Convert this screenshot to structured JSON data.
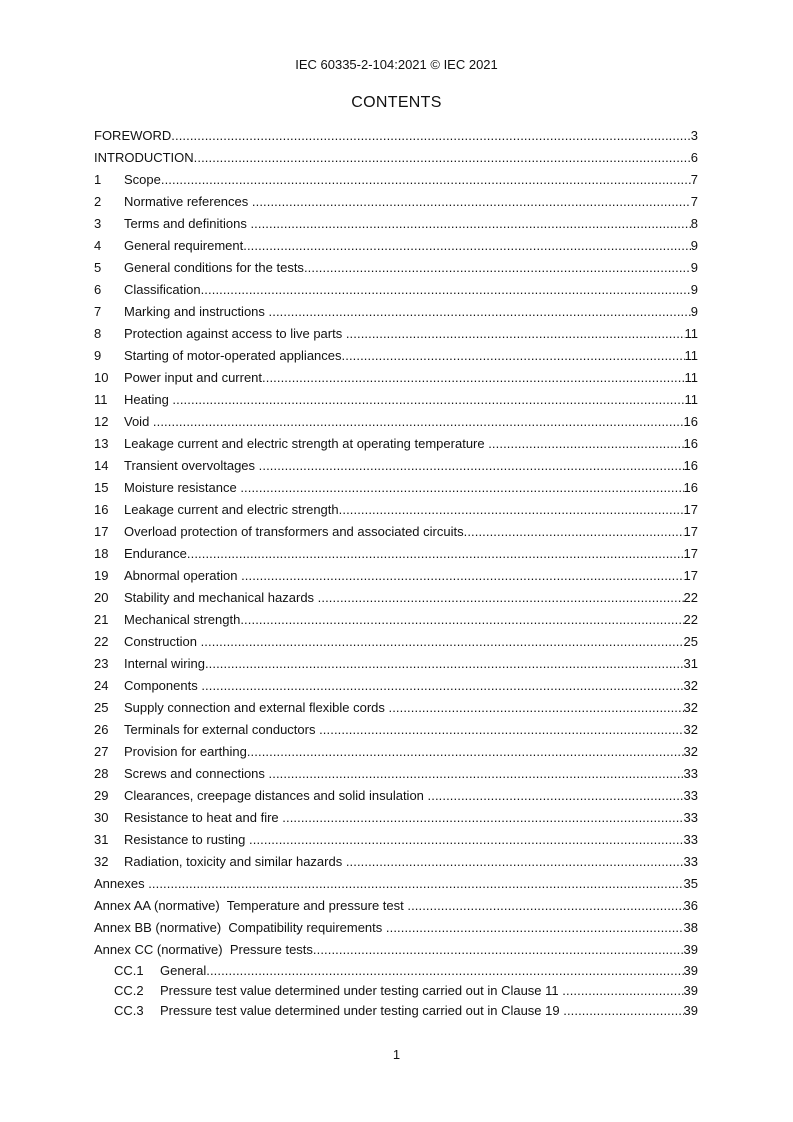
{
  "header": "IEC 60335-2-104:2021 © IEC 2021",
  "title": "CONTENTS",
  "entries": [
    {
      "num": "",
      "text": "FOREWORD",
      "page": "3"
    },
    {
      "num": "",
      "text": "INTRODUCTION",
      "page": "6"
    },
    {
      "num": "1",
      "text": "Scope",
      "page": "7"
    },
    {
      "num": "2",
      "text": "Normative references ",
      "page": "7"
    },
    {
      "num": "3",
      "text": "Terms and definitions ",
      "page": "8"
    },
    {
      "num": "4",
      "text": "General requirement",
      "page": "9"
    },
    {
      "num": "5",
      "text": "General conditions for the tests",
      "page": "9"
    },
    {
      "num": "6",
      "text": "Classification",
      "page": "9"
    },
    {
      "num": "7",
      "text": "Marking and instructions ",
      "page": "9"
    },
    {
      "num": "8",
      "text": "Protection against access to live parts ",
      "page": "11"
    },
    {
      "num": "9",
      "text": "Starting of motor-operated appliances",
      "page": "11"
    },
    {
      "num": "10",
      "text": "Power input and current",
      "page": "11"
    },
    {
      "num": "11",
      "text": "Heating ",
      "page": "11"
    },
    {
      "num": "12",
      "text": "Void ",
      "page": "16"
    },
    {
      "num": "13",
      "text": "Leakage current and electric strength at operating temperature ",
      "page": "16"
    },
    {
      "num": "14",
      "text": "Transient overvoltages ",
      "page": "16"
    },
    {
      "num": "15",
      "text": "Moisture resistance ",
      "page": "16"
    },
    {
      "num": "16",
      "text": "Leakage current and electric strength",
      "page": "17"
    },
    {
      "num": "17",
      "text": "Overload protection of transformers and associated circuits",
      "page": "17"
    },
    {
      "num": "18",
      "text": "Endurance",
      "page": "17"
    },
    {
      "num": "19",
      "text": "Abnormal operation ",
      "page": "17"
    },
    {
      "num": "20",
      "text": "Stability and mechanical hazards ",
      "page": "22"
    },
    {
      "num": "21",
      "text": "Mechanical strength",
      "page": "22"
    },
    {
      "num": "22",
      "text": "Construction ",
      "page": "25"
    },
    {
      "num": "23",
      "text": "Internal wiring",
      "page": "31"
    },
    {
      "num": "24",
      "text": "Components ",
      "page": "32"
    },
    {
      "num": "25",
      "text": "Supply connection and external flexible cords ",
      "page": "32"
    },
    {
      "num": "26",
      "text": "Terminals for external conductors ",
      "page": "32"
    },
    {
      "num": "27",
      "text": "Provision for earthing",
      "page": "32"
    },
    {
      "num": "28",
      "text": "Screws and connections ",
      "page": "33"
    },
    {
      "num": "29",
      "text": "Clearances, creepage distances and solid insulation ",
      "page": "33"
    },
    {
      "num": "30",
      "text": "Resistance to heat and fire ",
      "page": "33"
    },
    {
      "num": "31",
      "text": "Resistance to rusting ",
      "page": "33"
    },
    {
      "num": "32",
      "text": "Radiation, toxicity and similar hazards ",
      "page": "33"
    },
    {
      "num": "",
      "text": "Annexes ",
      "page": "35"
    },
    {
      "num": "",
      "text": "Annex AA (normative)  Temperature and pressure test ",
      "page": "36"
    },
    {
      "num": "",
      "text": "Annex BB (normative)  Compatibility requirements ",
      "page": "38"
    },
    {
      "num": "",
      "text": "Annex CC (normative)  Pressure tests",
      "page": "39"
    }
  ],
  "sub_entries": [
    {
      "num": "CC.1",
      "text": "General",
      "page": "39"
    },
    {
      "num": "CC.2",
      "text": "Pressure test value determined under testing carried out in Clause 11 ",
      "page": "39"
    },
    {
      "num": "CC.3",
      "text": "Pressure test value determined under testing carried out in Clause 19 ",
      "page": "39"
    }
  ],
  "page_number": "1"
}
